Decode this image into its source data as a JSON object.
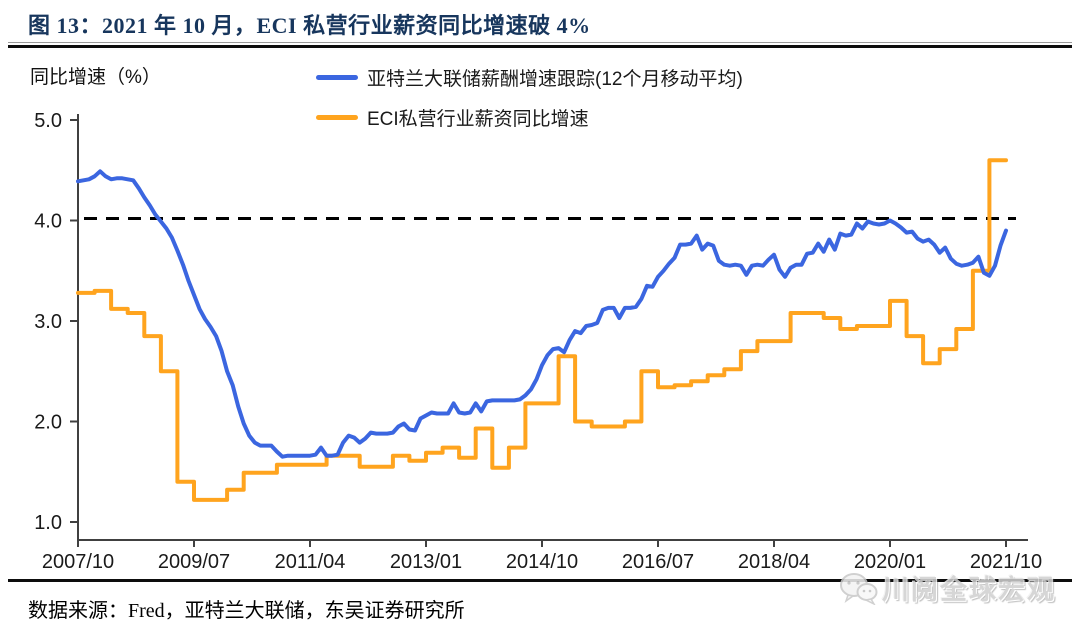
{
  "title": "图 13：2021 年 10 月，ECI 私营行业薪资同比增速破 4%",
  "y_axis_title": "同比增速（%）",
  "legend": [
    {
      "label": "亚特兰大联储薪酬增速跟踪(12个月移动平均)",
      "color": "#3b66e0"
    },
    {
      "label": "ECI私营行业薪资同比增速",
      "color": "#ffa41e"
    }
  ],
  "source_note": "数据来源：Fred，亚特兰大联储，东吴证券研究所",
  "watermark": {
    "text": "川阅全球宏观"
  },
  "colors": {
    "title": "#17365d",
    "atlanta_line": "#3b66e0",
    "eci_line": "#ffa41e",
    "reference_line": "#000000",
    "axis": "#404040",
    "tick_text": "#1a1a1a"
  },
  "chart_data": {
    "type": "line",
    "title": "2021年10月，ECI私营行业薪资同比增速破4%",
    "ylabel": "同比增速（%）",
    "ylim": [
      1.0,
      5.0
    ],
    "y_ticks": [
      "5.0",
      "4.0",
      "3.0",
      "2.0",
      "1.0"
    ],
    "y_tick_values": [
      5.0,
      4.0,
      3.0,
      2.0,
      1.0
    ],
    "x_tick_labels": [
      "2007/10",
      "2009/07",
      "2011/04",
      "2013/01",
      "2014/10",
      "2016/07",
      "2018/04",
      "2020/01",
      "2021/10"
    ],
    "x_range_months": 168,
    "grid": false,
    "legend_position": "top",
    "reference_line": {
      "value": 4.0,
      "style": "dashed",
      "color": "#000000"
    },
    "series": [
      {
        "name": "亚特兰大联储薪酬增速跟踪(12个月移动平均)",
        "color": "#3b66e0",
        "interpolation": "linear",
        "x_start_month": 0,
        "x_step_months": 1,
        "values": [
          4.39,
          4.4,
          4.41,
          4.44,
          4.49,
          4.44,
          4.41,
          4.42,
          4.42,
          4.41,
          4.4,
          4.32,
          4.23,
          4.15,
          4.06,
          3.99,
          3.92,
          3.83,
          3.7,
          3.56,
          3.4,
          3.26,
          3.12,
          3.02,
          2.94,
          2.85,
          2.7,
          2.5,
          2.36,
          2.15,
          1.98,
          1.86,
          1.79,
          1.76,
          1.76,
          1.76,
          1.7,
          1.65,
          1.66,
          1.66,
          1.66,
          1.66,
          1.66,
          1.67,
          1.74,
          1.66,
          1.66,
          1.67,
          1.79,
          1.86,
          1.84,
          1.79,
          1.83,
          1.89,
          1.88,
          1.88,
          1.88,
          1.89,
          1.95,
          1.98,
          1.92,
          1.91,
          2.03,
          2.06,
          2.09,
          2.08,
          2.08,
          2.08,
          2.18,
          2.09,
          2.08,
          2.09,
          2.18,
          2.1,
          2.2,
          2.21,
          2.21,
          2.21,
          2.21,
          2.21,
          2.22,
          2.26,
          2.32,
          2.42,
          2.56,
          2.66,
          2.72,
          2.73,
          2.69,
          2.81,
          2.9,
          2.88,
          2.95,
          2.96,
          2.98,
          3.11,
          3.13,
          3.13,
          3.03,
          3.13,
          3.13,
          3.14,
          3.22,
          3.35,
          3.34,
          3.44,
          3.5,
          3.57,
          3.63,
          3.76,
          3.76,
          3.77,
          3.85,
          3.71,
          3.77,
          3.75,
          3.6,
          3.56,
          3.55,
          3.56,
          3.55,
          3.46,
          3.55,
          3.56,
          3.55,
          3.61,
          3.66,
          3.51,
          3.44,
          3.53,
          3.56,
          3.56,
          3.67,
          3.68,
          3.77,
          3.69,
          3.81,
          3.71,
          3.87,
          3.85,
          3.86,
          3.97,
          3.92,
          3.99,
          3.97,
          3.96,
          3.97,
          4.0,
          3.97,
          3.93,
          3.88,
          3.89,
          3.82,
          3.79,
          3.81,
          3.76,
          3.68,
          3.73,
          3.62,
          3.57,
          3.55,
          3.56,
          3.58,
          3.64,
          3.48,
          3.45,
          3.55,
          3.75,
          3.9
        ]
      },
      {
        "name": "ECI私营行业薪资同比增速",
        "color": "#ffa41e",
        "interpolation": "step-after",
        "x_start_month": 0,
        "x_step_months": 3,
        "values": [
          3.28,
          3.3,
          3.12,
          3.08,
          2.85,
          2.5,
          1.4,
          1.22,
          1.22,
          1.32,
          1.49,
          1.49,
          1.57,
          1.57,
          1.57,
          1.66,
          1.66,
          1.55,
          1.55,
          1.66,
          1.61,
          1.69,
          1.74,
          1.64,
          1.93,
          1.54,
          1.74,
          2.18,
          2.18,
          2.65,
          2.0,
          1.95,
          1.95,
          2.0,
          2.5,
          2.34,
          2.36,
          2.4,
          2.46,
          2.52,
          2.7,
          2.8,
          2.8,
          3.08,
          3.08,
          3.03,
          2.92,
          2.95,
          2.95,
          3.2,
          2.85,
          2.58,
          2.72,
          2.92,
          3.5,
          4.6,
          4.6
        ]
      }
    ]
  }
}
